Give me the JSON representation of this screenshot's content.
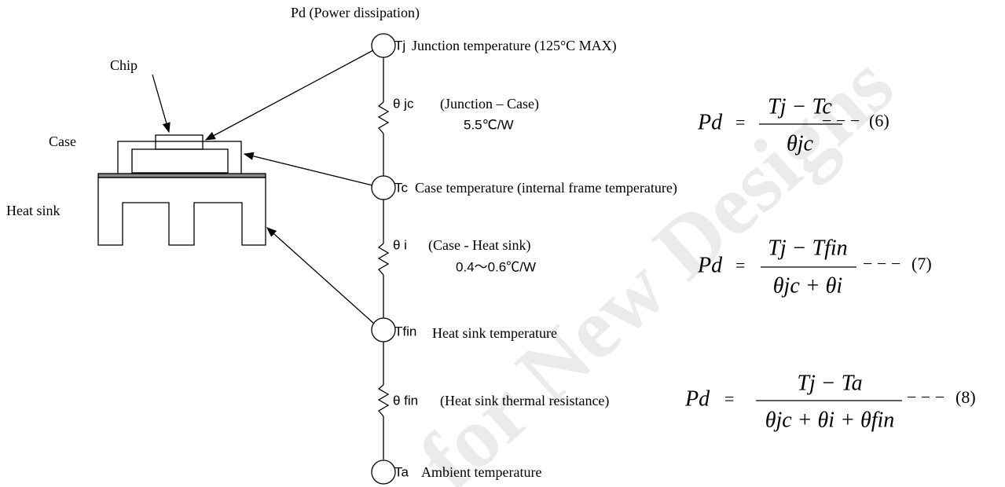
{
  "header": {
    "title": "Pd (Power dissipation)"
  },
  "package": {
    "chip": "Chip",
    "case": "Case",
    "heat_sink": "Heat sink"
  },
  "nodes": [
    {
      "symbol": "Tj",
      "label": "Junction temperature (125°C MAX)"
    },
    {
      "symbol": "Tc",
      "label": "Case temperature (internal frame temperature)"
    },
    {
      "symbol": "Tfin",
      "label": "Heat sink temperature"
    },
    {
      "symbol": "Ta",
      "label": "Ambient temperature"
    }
  ],
  "resistors": [
    {
      "symbol": "θ jc",
      "label": "(Junction – Case)",
      "value": "5.5℃/W"
    },
    {
      "symbol": "θ i",
      "label": "(Case - Heat sink)",
      "value": "0.4～0.6℃/W"
    },
    {
      "symbol": "θ fin",
      "label": "(Heat sink thermal resistance)"
    }
  ],
  "equations": [
    {
      "lhs": "Pd",
      "relation": "=",
      "numerator": "Tj − Tc",
      "denominator": "θjc",
      "leader": "− − −",
      "number": "(6)"
    },
    {
      "lhs": "Pd",
      "relation": "=",
      "numerator": "Tj − Tfin",
      "denominator": "θjc + θi",
      "leader": "− − −",
      "number": "(7)"
    },
    {
      "lhs": "Pd",
      "relation": "=",
      "numerator": "Tj − Ta",
      "denominator": "θjc + θi + θfin",
      "leader": "− − −",
      "number": "(8)"
    }
  ],
  "watermark": "for New Designs"
}
